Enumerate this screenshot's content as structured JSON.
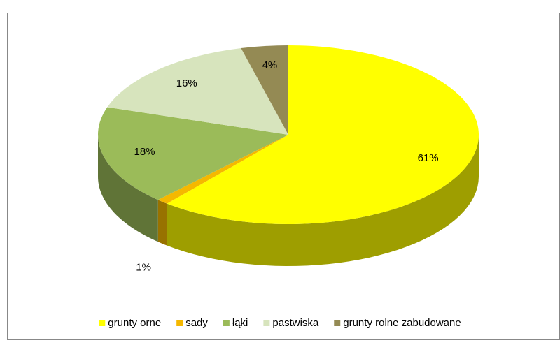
{
  "chart_data": {
    "type": "pie",
    "categories": [
      "grunty orne",
      "sady",
      "łąki",
      "pastwiska",
      "grunty rolne zabudowane"
    ],
    "values": [
      61,
      1,
      18,
      16,
      4
    ],
    "value_labels": [
      "61%",
      "1%",
      "18%",
      "16%",
      "4%"
    ],
    "colors": [
      "#ffff00",
      "#f5b800",
      "#9bbb59",
      "#d7e4bd",
      "#948a54"
    ],
    "legend": "bottom"
  }
}
